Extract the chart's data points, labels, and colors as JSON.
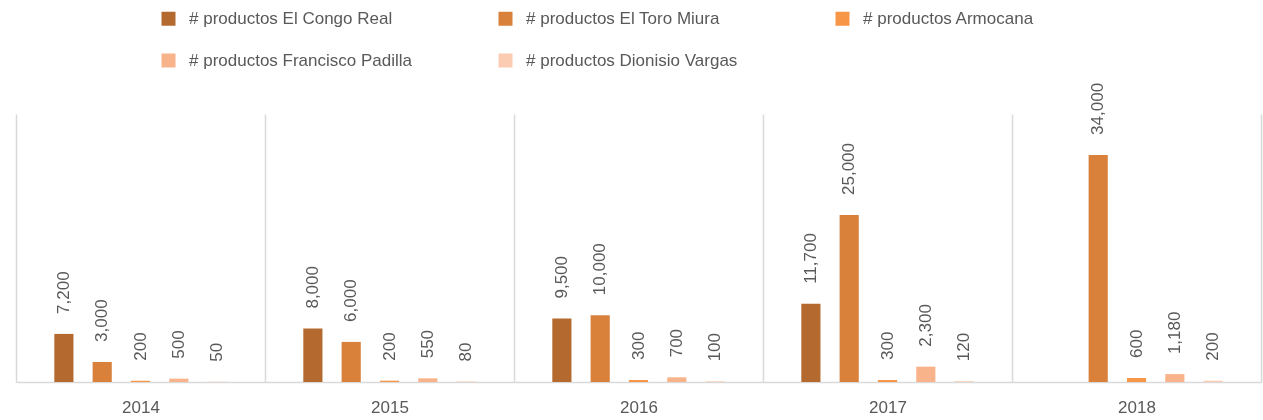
{
  "chart_data": {
    "type": "bar",
    "categories": [
      "2014",
      "2015",
      "2016",
      "2017",
      "2018"
    ],
    "series": [
      {
        "name": "# productos El Congo Real",
        "color": "#b46a2f",
        "values": [
          7200,
          8000,
          9500,
          11700,
          null
        ],
        "value_labels": [
          "7,200",
          "8,000",
          "9,500",
          "11,700",
          null
        ]
      },
      {
        "name": "# productos El Toro Miura",
        "color": "#d9813b",
        "values": [
          3000,
          6000,
          10000,
          25000,
          34000
        ],
        "value_labels": [
          "3,000",
          "6,000",
          "10,000",
          "25,000",
          "34,000"
        ]
      },
      {
        "name": "# productos Armocana",
        "color": "#f79646",
        "values": [
          200,
          200,
          300,
          300,
          600
        ],
        "value_labels": [
          "200",
          "200",
          "300",
          "300",
          "600"
        ]
      },
      {
        "name": "# productos Francisco Padilla",
        "color": "#f9b38a",
        "values": [
          500,
          550,
          700,
          2300,
          1180
        ],
        "value_labels": [
          "500",
          "550",
          "700",
          "2,300",
          "1,180"
        ]
      },
      {
        "name": "# productos Dionisio Vargas",
        "color": "#fbccb2",
        "values": [
          50,
          80,
          100,
          120,
          200
        ],
        "value_labels": [
          "50",
          "80",
          "100",
          "120",
          "200"
        ]
      }
    ],
    "legend": "top",
    "grid": "x",
    "tick_labels": "x"
  }
}
